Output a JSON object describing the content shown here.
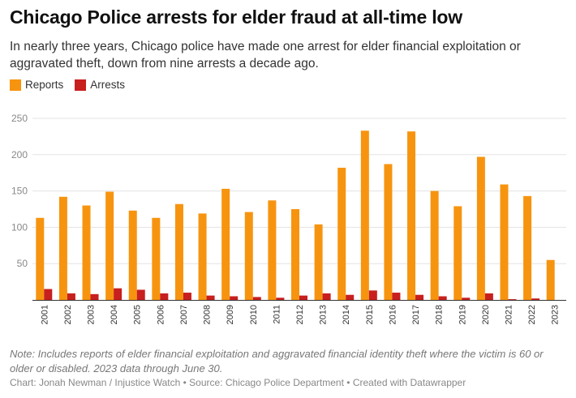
{
  "title": "Chicago Police arrests for elder fraud at all-time low",
  "subtitle": "In nearly three years, Chicago police have made one arrest for elder financial exploitation or aggravated theft, down from nine arrests a decade ago.",
  "note": "Note: Includes reports of elder financial exploitation and aggravated financial identity theft where the victim is 60 or older or disabled. 2023 data through June 30.",
  "source": "Chart: Jonah Newman / Injustice Watch • Source: Chicago Police Department  • Created with Datawrapper",
  "colors": {
    "reports": "#f7940f",
    "arrests": "#c81f1f",
    "grid": "#e3e3e3",
    "axis": "#333333"
  },
  "chart_data": {
    "type": "bar",
    "title": "Chicago Police arrests for elder fraud at all-time low",
    "categories": [
      "2001",
      "2002",
      "2003",
      "2004",
      "2005",
      "2006",
      "2007",
      "2008",
      "2009",
      "2010",
      "2011",
      "2012",
      "2013",
      "2014",
      "2015",
      "2016",
      "2017",
      "2018",
      "2019",
      "2020",
      "2021",
      "2022",
      "2023"
    ],
    "series": [
      {
        "name": "Reports",
        "color": "#f7940f",
        "values": [
          113,
          142,
          130,
          149,
          123,
          113,
          132,
          119,
          153,
          121,
          137,
          125,
          104,
          182,
          233,
          187,
          232,
          150,
          129,
          197,
          159,
          143,
          55
        ]
      },
      {
        "name": "Arrests",
        "color": "#c81f1f",
        "values": [
          15,
          9,
          8,
          16,
          14,
          9,
          10,
          6,
          5,
          4,
          3,
          6,
          9,
          7,
          13,
          10,
          7,
          5,
          3,
          9,
          1,
          2,
          0
        ]
      }
    ],
    "yticks": [
      0,
      50,
      100,
      150,
      200,
      250
    ],
    "ytick_labels": [
      "",
      "50",
      "100",
      "150",
      "200",
      "250"
    ],
    "ylim": [
      0,
      250
    ],
    "grid": true,
    "legend": "top-left"
  }
}
